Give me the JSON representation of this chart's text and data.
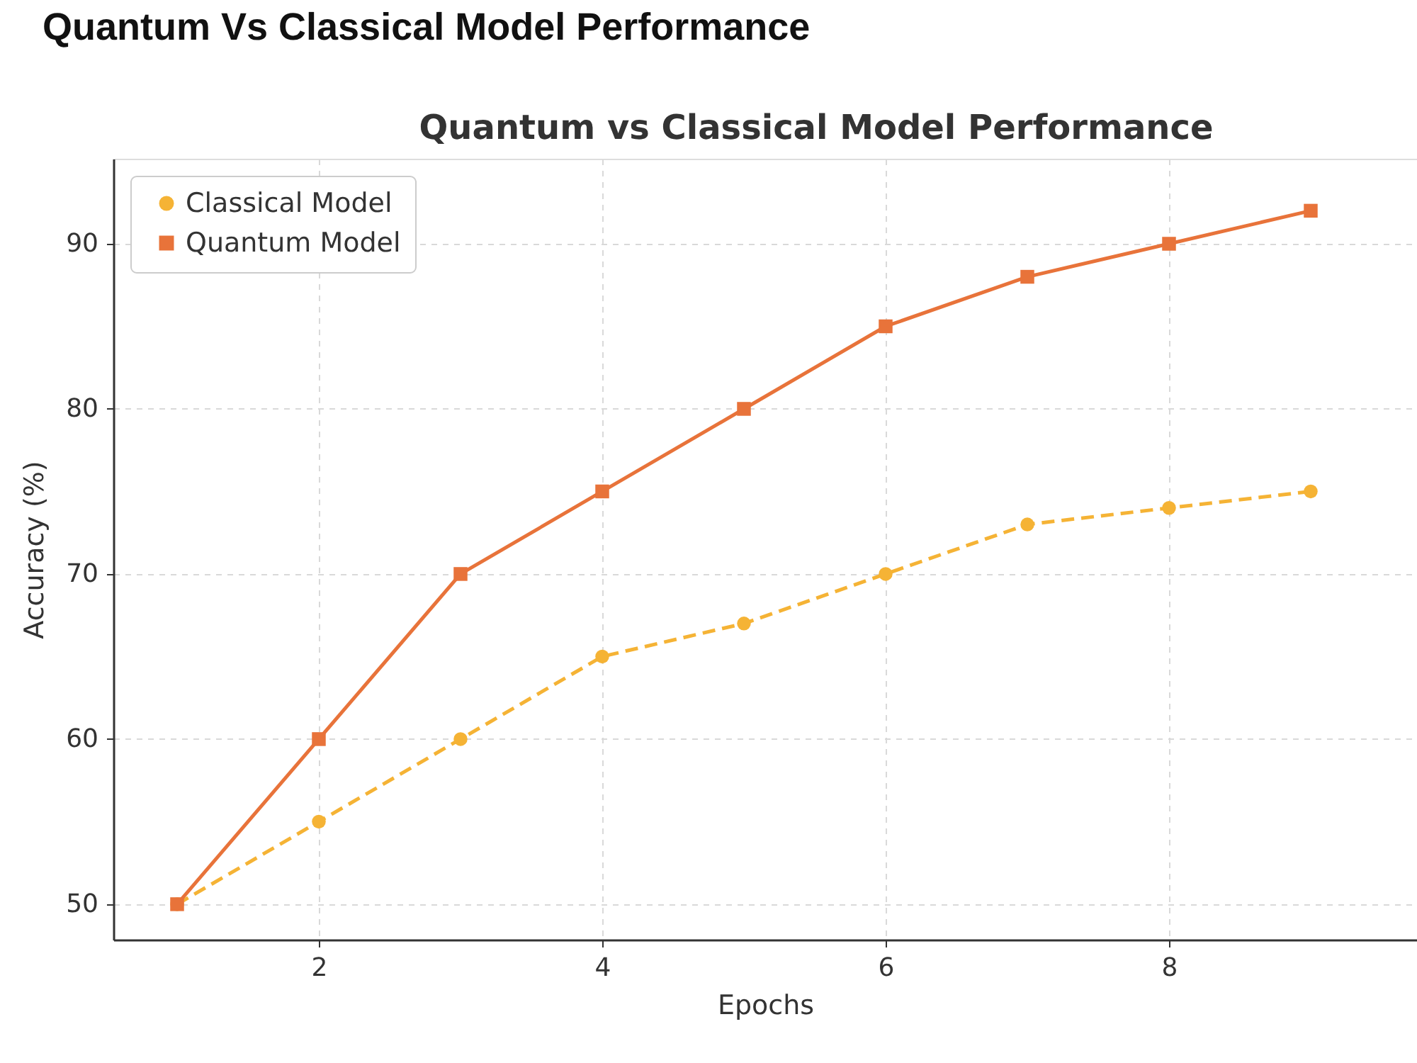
{
  "chart_data": {
    "type": "line",
    "title": "Quantum Vs Classical Model Performance",
    "subtitle": "Quantum vs Classical Model Performance",
    "xlabel": "Epochs",
    "ylabel": "Accuracy (%)",
    "x": [
      1,
      2,
      3,
      4,
      5,
      6,
      7,
      8,
      9
    ],
    "series": [
      {
        "name": "Classical Model",
        "color": "#f5b335",
        "values": [
          50,
          55,
          60,
          65,
          67,
          70,
          73,
          74,
          75
        ],
        "marker": "circle",
        "line_style": "dashed"
      },
      {
        "name": "Quantum Model",
        "color": "#e8733a",
        "values": [
          50,
          60,
          70,
          75,
          80,
          85,
          88,
          90,
          92
        ],
        "marker": "square",
        "line_style": "solid"
      }
    ],
    "xlim": [
      0.55,
      9.75
    ],
    "ylim": [
      47.85,
      95.15
    ],
    "xticks": [
      2,
      4,
      6,
      8
    ],
    "yticks": [
      50,
      60,
      70,
      80,
      90
    ],
    "grid": true,
    "legend": "top left"
  }
}
